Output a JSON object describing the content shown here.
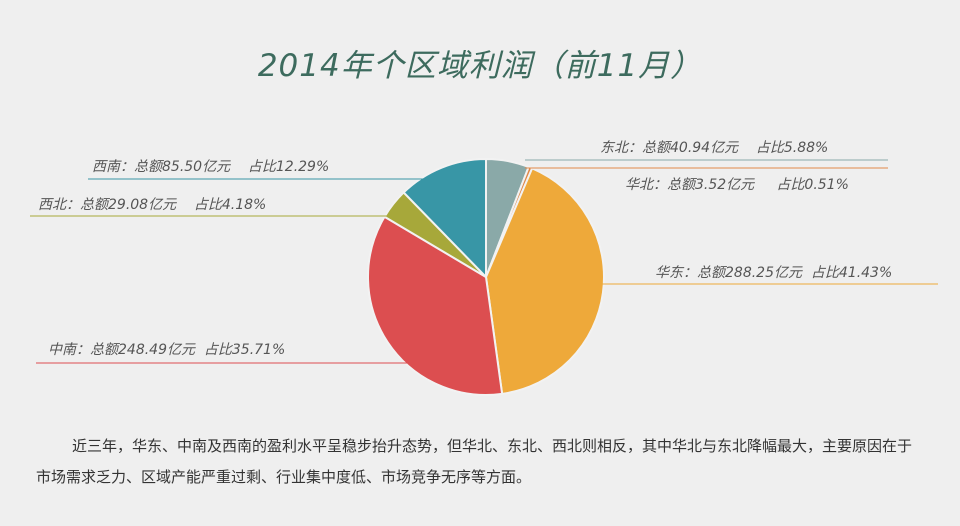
{
  "title": "2014年个区域利润（前11月）",
  "chart_data": {
    "type": "pie",
    "title": "2014年个区域利润（前11月）",
    "slices": [
      {
        "name": "东北",
        "value": 40.94,
        "label": "东北：总额40.94亿元    占比5.88%",
        "color": "#8aa9a8"
      },
      {
        "name": "华北",
        "value": 3.52,
        "label": "华北：总额3.52亿元     占比0.51%",
        "color": "#e08848"
      },
      {
        "name": "华东",
        "value": 288.25,
        "label": "华东：总额288.25亿元  占比41.43%",
        "color": "#eea93a"
      },
      {
        "name": "中南",
        "value": 248.49,
        "label": "中南：总额248.49亿元  占比35.71%",
        "color": "#dc4e50"
      },
      {
        "name": "西北",
        "value": 29.08,
        "label": "西北：总额29.08亿元    占比4.18%",
        "color": "#a7a83a"
      },
      {
        "name": "西南",
        "value": 85.5,
        "label": "西南：总额85.50亿元    占比12.29%",
        "color": "#3896a6"
      }
    ]
  },
  "summary": "近三年，华东、中南及西南的盈利水平呈稳步抬升态势，但华北、东北、西北则相反，其中华北与东北降幅最大，主要原因在于市场需求乏力、区域产能严重过剩、行业集中度低、市场竞争无序等方面。"
}
